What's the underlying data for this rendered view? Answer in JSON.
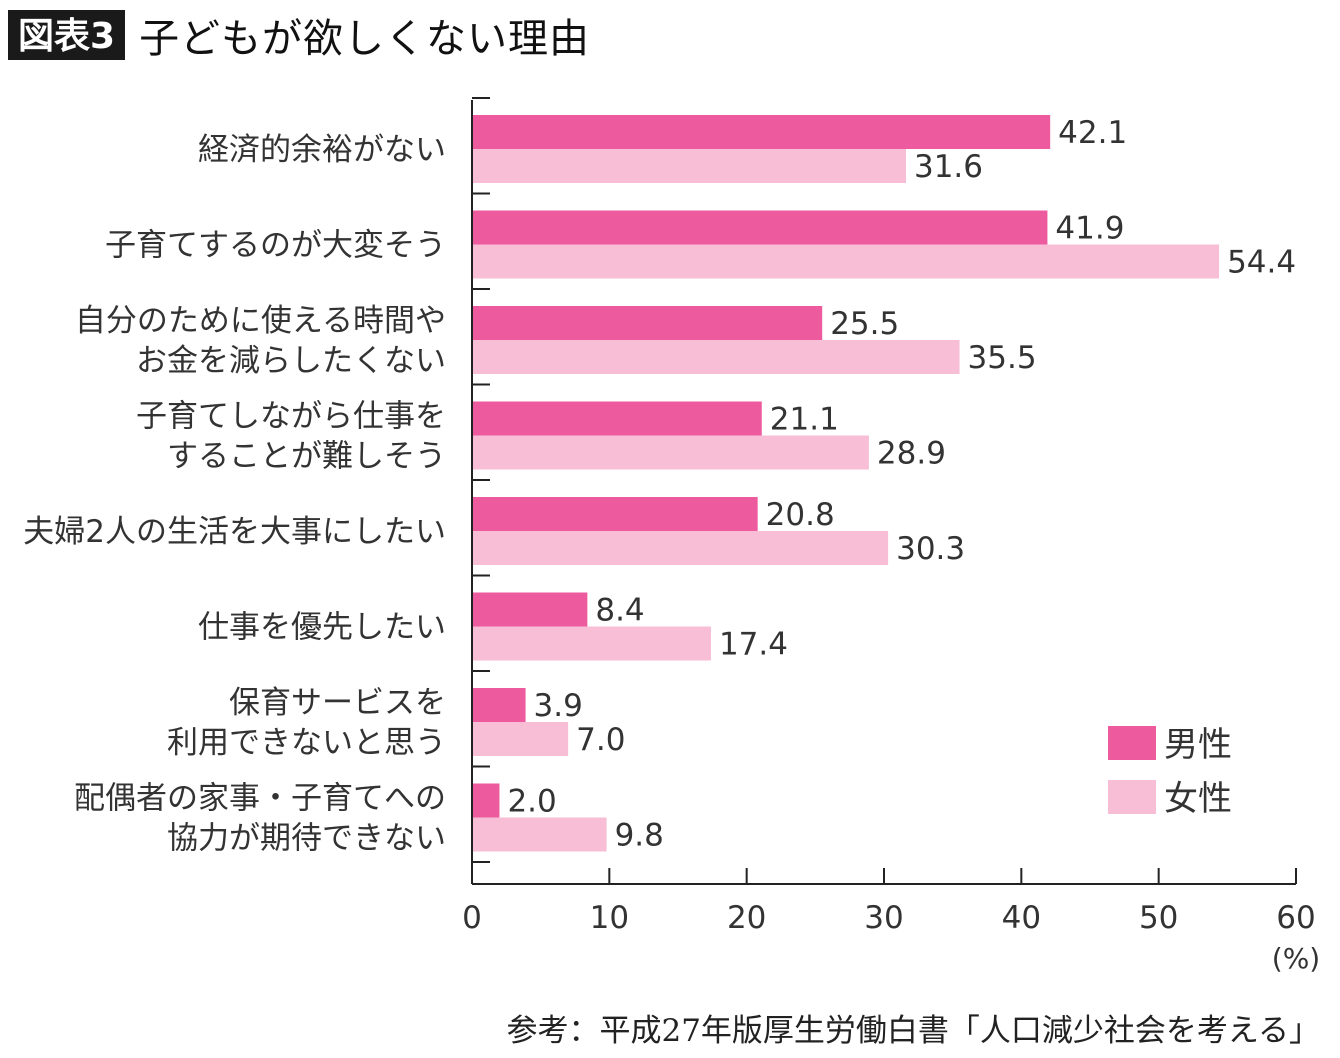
{
  "header": {
    "badge": "図表3",
    "title": "子どもが欲しくない理由"
  },
  "source": "参考：平成27年版厚生労働白書「人口減少社会を考える」",
  "colors": {
    "male": "#EE5A9E",
    "female": "#F7BED6",
    "axis": "#222222"
  },
  "chart_data": {
    "type": "bar",
    "orientation": "horizontal",
    "title": "子どもが欲しくない理由",
    "categories": [
      [
        "経済的余裕がない"
      ],
      [
        "子育てするのが大変そう"
      ],
      [
        "自分のために使える時間や",
        "お金を減らしたくない"
      ],
      [
        "子育てしながら仕事を",
        "することが難しそう"
      ],
      [
        "夫婦2人の生活を大事にしたい"
      ],
      [
        "仕事を優先したい"
      ],
      [
        "保育サービスを",
        "利用できないと思う"
      ],
      [
        "配偶者の家事・子育てへの",
        "協力が期待できない"
      ]
    ],
    "series": [
      {
        "name": "男性",
        "values": [
          42.1,
          41.9,
          25.5,
          21.1,
          20.8,
          8.4,
          3.9,
          2.0
        ],
        "labels": [
          "42.1",
          "41.9",
          "25.5",
          "21.1",
          "20.8",
          "8.4",
          "3.9",
          "2.0"
        ]
      },
      {
        "name": "女性",
        "values": [
          31.6,
          54.4,
          35.5,
          28.9,
          30.3,
          17.4,
          7.0,
          9.8
        ],
        "labels": [
          "31.6",
          "54.4",
          "35.5",
          "28.9",
          "30.3",
          "17.4",
          "7.0",
          "9.8"
        ]
      }
    ],
    "xlim": [
      0,
      60
    ],
    "xticks": [
      0,
      10,
      20,
      30,
      40,
      50,
      60
    ],
    "xunit": "(%)",
    "legend": "bottom-right",
    "grid": false
  }
}
